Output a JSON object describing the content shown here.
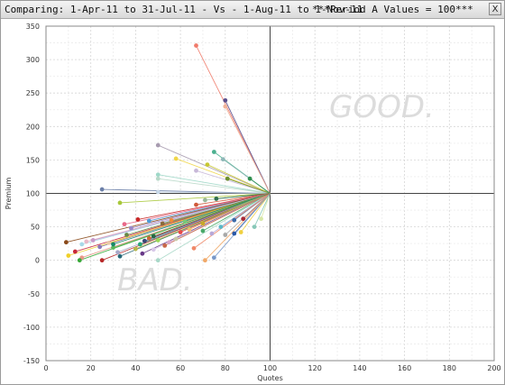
{
  "window": {
    "title_left": "Comparing: 1-Apr-11 to 31-Jul-11 - Vs - 1-Aug-11 to 1-Nov-11",
    "title_right": "***Period A Values = 100***",
    "close_label": "X"
  },
  "chart_data": {
    "type": "scatter",
    "xlabel": "Quotes",
    "ylabel": "Premium",
    "xlim": [
      0,
      200
    ],
    "ylim": [
      -150,
      350
    ],
    "xticks": [
      0,
      20,
      40,
      60,
      80,
      100,
      120,
      140,
      160,
      180,
      200
    ],
    "yticks": [
      -150,
      -100,
      -50,
      0,
      50,
      100,
      150,
      200,
      250,
      300,
      350
    ],
    "grid": true,
    "reference": {
      "x": 100,
      "y": 100
    },
    "annotations": {
      "good": "GOOD.",
      "bad": "BAD."
    },
    "points": [
      {
        "x": 67,
        "y": 321,
        "color": "#f07b6b"
      },
      {
        "x": 80,
        "y": 239,
        "color": "#5a4e8c"
      },
      {
        "x": 80,
        "y": 230,
        "color": "#f0b49a"
      },
      {
        "x": 50,
        "y": 172,
        "color": "#a89cb0"
      },
      {
        "x": 75,
        "y": 162,
        "color": "#4bb08f"
      },
      {
        "x": 79,
        "y": 151,
        "color": "#8fb8b8"
      },
      {
        "x": 58,
        "y": 152,
        "color": "#f0d64a"
      },
      {
        "x": 72,
        "y": 143,
        "color": "#c8c832"
      },
      {
        "x": 67,
        "y": 134,
        "color": "#c8b8d8"
      },
      {
        "x": 50,
        "y": 128,
        "color": "#9fd8c8"
      },
      {
        "x": 50,
        "y": 122,
        "color": "#b8d8c8"
      },
      {
        "x": 81,
        "y": 122,
        "color": "#6b8f2f"
      },
      {
        "x": 91,
        "y": 122,
        "color": "#2f8f4f"
      },
      {
        "x": 25,
        "y": 106,
        "color": "#6b7fa8"
      },
      {
        "x": 50,
        "y": 102,
        "color": "#c8d8e8"
      },
      {
        "x": 33,
        "y": 86,
        "color": "#a8c83a"
      },
      {
        "x": 71,
        "y": 90,
        "color": "#9ab89a"
      },
      {
        "x": 76,
        "y": 92,
        "color": "#2f6f4f"
      },
      {
        "x": 67,
        "y": 83,
        "color": "#d05a3a"
      },
      {
        "x": 41,
        "y": 61,
        "color": "#c82828"
      },
      {
        "x": 46,
        "y": 59,
        "color": "#4b9bd8"
      },
      {
        "x": 56,
        "y": 60,
        "color": "#f08a3a"
      },
      {
        "x": 35,
        "y": 54,
        "color": "#e86888"
      },
      {
        "x": 62,
        "y": 58,
        "color": "#78c878"
      },
      {
        "x": 38,
        "y": 48,
        "color": "#9a88c8"
      },
      {
        "x": 52,
        "y": 55,
        "color": "#8a6a3a"
      },
      {
        "x": 70,
        "y": 55,
        "color": "#c8a828"
      },
      {
        "x": 78,
        "y": 50,
        "color": "#5ab8c8"
      },
      {
        "x": 84,
        "y": 60,
        "color": "#3a6aa8"
      },
      {
        "x": 88,
        "y": 62,
        "color": "#a82838"
      },
      {
        "x": 96,
        "y": 62,
        "color": "#d8e8a8"
      },
      {
        "x": 60,
        "y": 42,
        "color": "#e84848"
      },
      {
        "x": 64,
        "y": 46,
        "color": "#f0c070"
      },
      {
        "x": 70,
        "y": 44,
        "color": "#48a868"
      },
      {
        "x": 74,
        "y": 40,
        "color": "#b8a8d8"
      },
      {
        "x": 80,
        "y": 38,
        "color": "#a8a8a8"
      },
      {
        "x": 84,
        "y": 40,
        "color": "#2858a8"
      },
      {
        "x": 87,
        "y": 42,
        "color": "#f0d040"
      },
      {
        "x": 93,
        "y": 50,
        "color": "#88c8b8"
      },
      {
        "x": 48,
        "y": 36,
        "color": "#286848"
      },
      {
        "x": 46,
        "y": 33,
        "color": "#c86838"
      },
      {
        "x": 50,
        "y": 30,
        "color": "#98d858"
      },
      {
        "x": 44,
        "y": 29,
        "color": "#384878"
      },
      {
        "x": 42,
        "y": 24,
        "color": "#28a878"
      },
      {
        "x": 55,
        "y": 27,
        "color": "#d8a8c8"
      },
      {
        "x": 58,
        "y": 32,
        "color": "#c8c8a8"
      },
      {
        "x": 9,
        "y": 27,
        "color": "#8a4a1a"
      },
      {
        "x": 18,
        "y": 28,
        "color": "#e8b8c8"
      },
      {
        "x": 21,
        "y": 30,
        "color": "#c898c8"
      },
      {
        "x": 28,
        "y": 26,
        "color": "#e8c8a8"
      },
      {
        "x": 30,
        "y": 19,
        "color": "#58b858"
      },
      {
        "x": 24,
        "y": 20,
        "color": "#8878b8"
      },
      {
        "x": 16,
        "y": 24,
        "color": "#a8d8e8"
      },
      {
        "x": 13,
        "y": 13,
        "color": "#c82838"
      },
      {
        "x": 10,
        "y": 7,
        "color": "#f0d028"
      },
      {
        "x": 16,
        "y": 4,
        "color": "#e89888"
      },
      {
        "x": 15,
        "y": 0,
        "color": "#38a838"
      },
      {
        "x": 25,
        "y": 0,
        "color": "#b82828"
      },
      {
        "x": 33,
        "y": 6,
        "color": "#286878"
      },
      {
        "x": 32,
        "y": 12,
        "color": "#a8a8c8"
      },
      {
        "x": 43,
        "y": 10,
        "color": "#683888"
      },
      {
        "x": 40,
        "y": 17,
        "color": "#b8b848"
      },
      {
        "x": 48,
        "y": 16,
        "color": "#d8c8e8"
      },
      {
        "x": 50,
        "y": 0,
        "color": "#a8d8c8"
      },
      {
        "x": 66,
        "y": 18,
        "color": "#f08868"
      },
      {
        "x": 71,
        "y": 0,
        "color": "#f0a868"
      },
      {
        "x": 75,
        "y": 4,
        "color": "#7898c8"
      },
      {
        "x": 30,
        "y": 24,
        "color": "#188868"
      },
      {
        "x": 53,
        "y": 22,
        "color": "#c86848"
      },
      {
        "x": 36,
        "y": 38,
        "color": "#688848"
      }
    ]
  }
}
